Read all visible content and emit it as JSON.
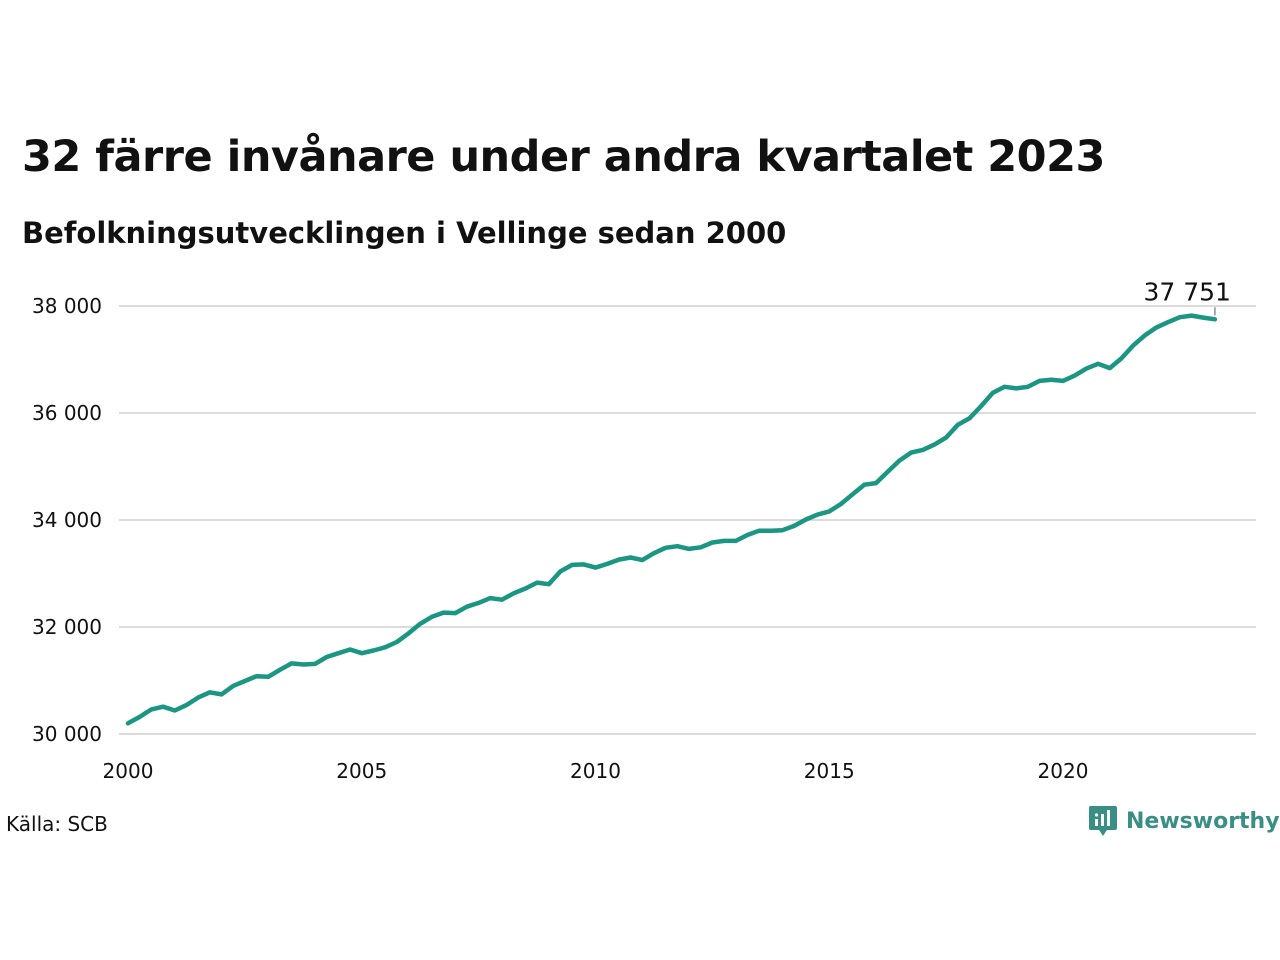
{
  "header": {
    "title": "32 färre invånare under andra kvartalet 2023",
    "subtitle": "Befolkningsutvecklingen i Vellinge sedan 2000"
  },
  "footer": {
    "source": "Källa: SCB",
    "brand": "Newsworthy",
    "brand_icon": "bar-chart-speech-bubble-icon"
  },
  "colors": {
    "line": "#1a9683",
    "grid": "#dcdcdc",
    "brand": "#3a8f85"
  },
  "chart_data": {
    "type": "line",
    "title": "32 färre invånare under andra kvartalet 2023",
    "subtitle": "Befolkningsutvecklingen i Vellinge sedan 2000",
    "xlabel": "",
    "ylabel": "",
    "xlim": [
      2000.0,
      2024.0
    ],
    "ylim": [
      30000,
      38000
    ],
    "x_ticks": [
      2000,
      2005,
      2010,
      2015,
      2020
    ],
    "x_tick_labels": [
      "2000",
      "2005",
      "2010",
      "2015",
      "2020"
    ],
    "y_ticks": [
      30000,
      32000,
      34000,
      36000,
      38000
    ],
    "y_tick_labels": [
      "30 000",
      "32 000",
      "34 000",
      "36 000",
      "38 000"
    ],
    "grid": "horizontal",
    "annotation": {
      "x": 2023.25,
      "y": 37751,
      "label": "37 751"
    },
    "series": [
      {
        "name": "",
        "x": [
          2000.0,
          2000.25,
          2000.5,
          2000.75,
          2001.0,
          2001.25,
          2001.5,
          2001.75,
          2002.0,
          2002.25,
          2002.5,
          2002.75,
          2003.0,
          2003.25,
          2003.5,
          2003.75,
          2004.0,
          2004.25,
          2004.5,
          2004.75,
          2005.0,
          2005.25,
          2005.5,
          2005.75,
          2006.0,
          2006.25,
          2006.5,
          2006.75,
          2007.0,
          2007.25,
          2007.5,
          2007.75,
          2008.0,
          2008.25,
          2008.5,
          2008.75,
          2009.0,
          2009.25,
          2009.5,
          2009.75,
          2010.0,
          2010.25,
          2010.5,
          2010.75,
          2011.0,
          2011.25,
          2011.5,
          2011.75,
          2012.0,
          2012.25,
          2012.5,
          2012.75,
          2013.0,
          2013.25,
          2013.5,
          2013.75,
          2014.0,
          2014.25,
          2014.5,
          2014.75,
          2015.0,
          2015.25,
          2015.5,
          2015.75,
          2016.0,
          2016.25,
          2016.5,
          2016.75,
          2017.0,
          2017.25,
          2017.5,
          2017.75,
          2018.0,
          2018.25,
          2018.5,
          2018.75,
          2019.0,
          2019.25,
          2019.5,
          2019.75,
          2020.0,
          2020.25,
          2020.5,
          2020.75,
          2021.0,
          2021.25,
          2021.5,
          2021.75,
          2022.0,
          2022.25,
          2022.5,
          2022.75,
          2023.0,
          2023.25
        ],
        "values": [
          30200,
          30320,
          30460,
          30510,
          30440,
          30540,
          30680,
          30780,
          30740,
          30900,
          30990,
          31080,
          31070,
          31200,
          31320,
          31300,
          31310,
          31440,
          31510,
          31580,
          31510,
          31560,
          31620,
          31720,
          31880,
          32060,
          32190,
          32270,
          32260,
          32380,
          32450,
          32540,
          32510,
          32630,
          32720,
          32830,
          32800,
          33040,
          33160,
          33170,
          33110,
          33180,
          33260,
          33300,
          33250,
          33380,
          33480,
          33510,
          33460,
          33490,
          33580,
          33610,
          33610,
          33720,
          33800,
          33800,
          33810,
          33890,
          34010,
          34100,
          34160,
          34300,
          34480,
          34660,
          34690,
          34900,
          35110,
          35260,
          35310,
          35410,
          35540,
          35780,
          35900,
          36130,
          36380,
          36490,
          36460,
          36490,
          36600,
          36620,
          36600,
          36700,
          36830,
          36920,
          36840,
          37020,
          37260,
          37450,
          37600,
          37700,
          37790,
          37820,
          37783,
          37751
        ]
      }
    ]
  }
}
